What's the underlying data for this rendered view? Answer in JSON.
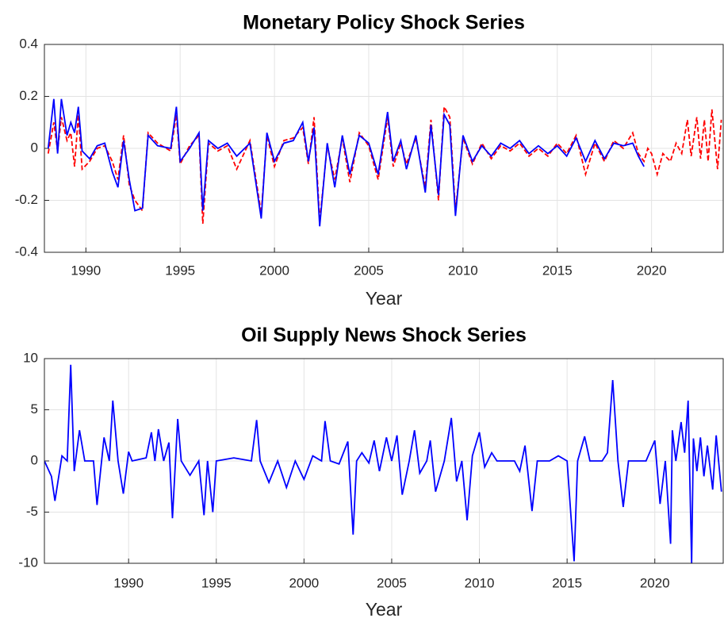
{
  "chart_data": [
    {
      "type": "line",
      "title": "Monetary Policy Shock Series",
      "xlabel": "Year",
      "xlim": [
        1987.8,
        2023.8
      ],
      "ylim": [
        -0.4,
        0.4
      ],
      "xticks": [
        1990,
        1995,
        2000,
        2005,
        2010,
        2015,
        2020
      ],
      "yticks": [
        -0.4,
        -0.2,
        0,
        0.2,
        0.4
      ],
      "grid": true,
      "series": [
        {
          "color": "#ff0000",
          "linestyle": "dashed",
          "x": [
            1988.0,
            1988.3,
            1988.5,
            1988.7,
            1989.0,
            1989.2,
            1989.4,
            1989.6,
            1989.8,
            1990.2,
            1990.6,
            1991.0,
            1991.4,
            1991.7,
            1992.0,
            1992.3,
            1992.6,
            1993.0,
            1993.3,
            1993.8,
            1994.5,
            1994.8,
            1995.0,
            1995.5,
            1996.0,
            1996.2,
            1996.5,
            1997.0,
            1997.5,
            1998.0,
            1998.7,
            1999.3,
            1999.6,
            2000.0,
            2000.5,
            2001.0,
            2001.5,
            2001.8,
            2002.1,
            2002.4,
            2002.8,
            2003.2,
            2003.6,
            2004.0,
            2004.5,
            2005.0,
            2005.5,
            2006.0,
            2006.3,
            2006.7,
            2007.0,
            2007.5,
            2008.0,
            2008.3,
            2008.7,
            2009.0,
            2009.3,
            2009.6,
            2010.0,
            2010.5,
            2011.0,
            2011.5,
            2012.0,
            2012.5,
            2013.0,
            2013.5,
            2014.0,
            2014.5,
            2015.0,
            2015.5,
            2016.0,
            2016.5,
            2017.0,
            2017.5,
            2018.0,
            2018.5,
            2019.0,
            2019.3,
            2019.6,
            2019.8,
            2020.0,
            2020.3,
            2020.6,
            2021.0,
            2021.3,
            2021.6,
            2021.9,
            2022.1,
            2022.4,
            2022.6,
            2022.8,
            2023.0,
            2023.2,
            2023.5,
            2023.7
          ],
          "values": [
            -0.02,
            0.1,
            -0.01,
            0.12,
            0.03,
            0.06,
            -0.07,
            0.13,
            -0.08,
            -0.05,
            0.0,
            0.01,
            -0.05,
            -0.12,
            0.05,
            -0.14,
            -0.2,
            -0.24,
            0.06,
            0.02,
            -0.01,
            0.13,
            -0.06,
            0.01,
            0.05,
            -0.29,
            0.02,
            -0.01,
            0.01,
            -0.08,
            0.03,
            -0.25,
            0.05,
            -0.07,
            0.03,
            0.04,
            0.08,
            -0.06,
            0.12,
            -0.28,
            0.01,
            -0.12,
            0.04,
            -0.13,
            0.06,
            0.01,
            -0.12,
            0.12,
            -0.07,
            0.02,
            -0.06,
            0.04,
            -0.15,
            0.11,
            -0.2,
            0.16,
            0.12,
            -0.24,
            0.04,
            -0.06,
            0.02,
            -0.04,
            0.01,
            -0.01,
            0.02,
            -0.03,
            0.0,
            -0.03,
            0.02,
            -0.02,
            0.05,
            -0.1,
            0.02,
            -0.05,
            0.03,
            0.0,
            0.06,
            -0.02,
            -0.05,
            0.0,
            -0.02,
            -0.1,
            -0.02,
            -0.05,
            0.02,
            -0.02,
            0.11,
            -0.03,
            0.12,
            -0.04,
            0.11,
            -0.05,
            0.15,
            -0.08,
            0.11
          ]
        },
        {
          "color": "#0000ff",
          "linestyle": "solid",
          "x": [
            1988.0,
            1988.3,
            1988.5,
            1988.7,
            1989.0,
            1989.2,
            1989.4,
            1989.6,
            1989.8,
            1990.2,
            1990.6,
            1991.0,
            1991.4,
            1991.7,
            1992.0,
            1992.3,
            1992.6,
            1993.0,
            1993.3,
            1993.8,
            1994.5,
            1994.8,
            1995.0,
            1995.5,
            1996.0,
            1996.2,
            1996.5,
            1997.0,
            1997.5,
            1998.0,
            1998.7,
            1999.3,
            1999.6,
            2000.0,
            2000.5,
            2001.0,
            2001.5,
            2001.8,
            2002.1,
            2002.4,
            2002.8,
            2003.2,
            2003.6,
            2004.0,
            2004.5,
            2005.0,
            2005.5,
            2006.0,
            2006.3,
            2006.7,
            2007.0,
            2007.5,
            2008.0,
            2008.3,
            2008.7,
            2009.0,
            2009.3,
            2009.6,
            2010.0,
            2010.5,
            2011.0,
            2011.5,
            2012.0,
            2012.5,
            2013.0,
            2013.5,
            2014.0,
            2014.5,
            2015.0,
            2015.5,
            2016.0,
            2016.5,
            2017.0,
            2017.5,
            2018.0,
            2018.5,
            2019.0,
            2019.3,
            2019.6
          ],
          "values": [
            0,
            0.19,
            -0.02,
            0.19,
            0.05,
            0.1,
            0.06,
            0.16,
            -0.01,
            -0.04,
            0.01,
            0.02,
            -0.09,
            -0.15,
            0.03,
            -0.12,
            -0.24,
            -0.23,
            0.05,
            0.01,
            0.0,
            0.16,
            -0.05,
            0.0,
            0.06,
            -0.24,
            0.03,
            0.0,
            0.02,
            -0.03,
            0.02,
            -0.27,
            0.06,
            -0.05,
            0.02,
            0.03,
            0.1,
            -0.05,
            0.08,
            -0.3,
            0.02,
            -0.15,
            0.05,
            -0.1,
            0.05,
            0.02,
            -0.1,
            0.14,
            -0.05,
            0.03,
            -0.08,
            0.05,
            -0.17,
            0.09,
            -0.18,
            0.13,
            0.09,
            -0.26,
            0.05,
            -0.05,
            0.01,
            -0.03,
            0.02,
            0,
            0.03,
            -0.02,
            0.01,
            -0.02,
            0.01,
            -0.03,
            0.04,
            -0.05,
            0.03,
            -0.04,
            0.02,
            0.01,
            0.02,
            -0.03,
            -0.07
          ]
        }
      ]
    },
    {
      "type": "line",
      "title": "Oil Supply News Shock Series",
      "xlabel": "Year",
      "xlim": [
        1985.2,
        2023.9
      ],
      "ylim": [
        -10,
        10
      ],
      "xticks": [
        1990,
        1995,
        2000,
        2005,
        2010,
        2015,
        2020
      ],
      "yticks": [
        -10,
        -5,
        0,
        5,
        10
      ],
      "grid": true,
      "series": [
        {
          "color": "#0000ff",
          "linestyle": "solid",
          "x": [
            1985.2,
            1985.6,
            1985.8,
            1986.2,
            1986.5,
            1986.7,
            1986.9,
            1987.2,
            1987.5,
            1988.0,
            1988.2,
            1988.6,
            1988.9,
            1989.1,
            1989.4,
            1989.7,
            1990.0,
            1990.2,
            1991.0,
            1991.3,
            1991.5,
            1991.7,
            1992.0,
            1992.3,
            1992.5,
            1992.8,
            1993.0,
            1993.5,
            1994.0,
            1994.3,
            1994.5,
            1994.8,
            1995.0,
            1996.0,
            1997.0,
            1997.3,
            1997.5,
            1998.0,
            1998.5,
            1999.0,
            1999.5,
            2000.0,
            2000.5,
            2001.0,
            2001.2,
            2001.5,
            2002.0,
            2002.5,
            2002.8,
            2003.0,
            2003.3,
            2003.7,
            2004.0,
            2004.3,
            2004.7,
            2005.0,
            2005.3,
            2005.6,
            2006.0,
            2006.3,
            2006.6,
            2007.0,
            2007.2,
            2007.5,
            2008.0,
            2008.4,
            2008.7,
            2009.0,
            2009.3,
            2009.6,
            2010.0,
            2010.3,
            2010.7,
            2011.0,
            2012.0,
            2012.3,
            2012.6,
            2013.0,
            2013.3,
            2014.0,
            2014.5,
            2015.0,
            2015.4,
            2015.6,
            2016.0,
            2016.3,
            2017.0,
            2017.3,
            2017.6,
            2017.9,
            2018.2,
            2018.5,
            2019.0,
            2019.5,
            2020.0,
            2020.3,
            2020.6,
            2020.9,
            2021.0,
            2021.2,
            2021.5,
            2021.7,
            2021.9,
            2022.1,
            2022.2,
            2022.4,
            2022.6,
            2022.8,
            2023.0,
            2023.3,
            2023.5,
            2023.8
          ],
          "values": [
            0,
            -1.5,
            -3.9,
            0.5,
            0,
            9.4,
            -1,
            3,
            0,
            0,
            -4.3,
            2.3,
            0,
            5.9,
            0,
            -3.2,
            0.9,
            0,
            0.3,
            2.8,
            0,
            3.1,
            0,
            1.8,
            -5.6,
            4.1,
            0,
            -1.4,
            0,
            -5.3,
            0,
            -5,
            0,
            0.3,
            0,
            4,
            0,
            -2.1,
            0,
            -2.6,
            0,
            -1.8,
            0.5,
            0,
            3.9,
            0,
            -0.3,
            1.9,
            -7.2,
            0,
            0.8,
            -0.2,
            2,
            -1,
            2.3,
            0,
            2.5,
            -3.3,
            0,
            3,
            -1.2,
            0,
            2,
            -3,
            0,
            4.2,
            -2,
            0,
            -5.8,
            0.5,
            2.8,
            -0.6,
            0.8,
            0,
            0,
            -1,
            1.5,
            -4.9,
            0,
            0,
            0.5,
            0,
            -9.8,
            0,
            2.4,
            0,
            0,
            0.8,
            7.9,
            0,
            -4.5,
            0,
            0,
            0,
            2,
            -4.2,
            0,
            -8.1,
            3,
            0,
            3.8,
            0.8,
            5.9,
            -10,
            2.2,
            -1,
            2.3,
            -1.5,
            1.5,
            -2.8,
            2.5,
            -3
          ]
        }
      ]
    }
  ]
}
